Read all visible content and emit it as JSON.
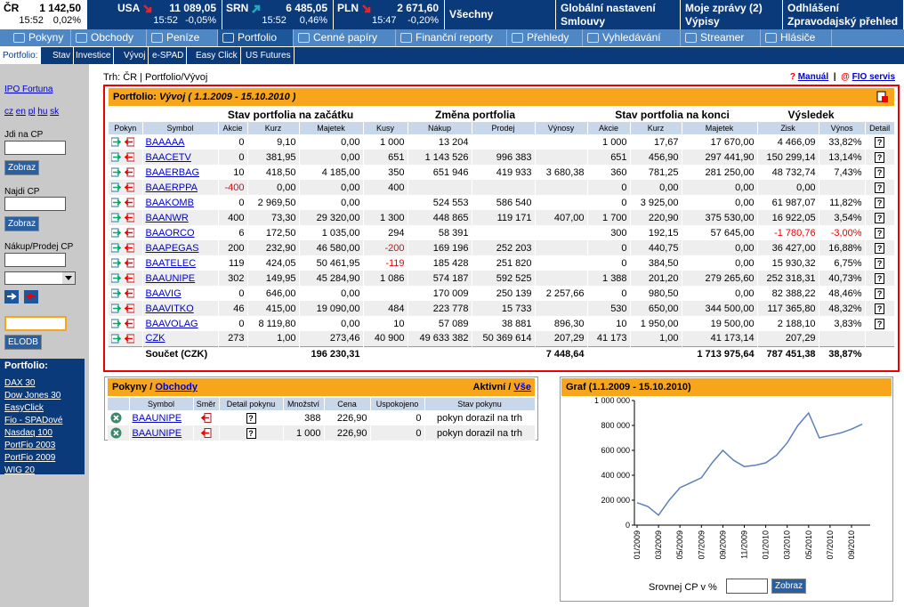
{
  "market": [
    {
      "name": "ČR",
      "value": "1 142,50",
      "time": "15:52",
      "change": "0,02%"
    },
    {
      "name": "USA",
      "value": "11 089,05",
      "time": "15:52",
      "change": "-0,05%"
    },
    {
      "name": "SRN",
      "value": "6 485,05",
      "time": "15:52",
      "change": "0,46%"
    },
    {
      "name": "PLN",
      "value": "2 671,60",
      "time": "15:47",
      "change": "-0,20%"
    }
  ],
  "top_links": [
    {
      "line1": "Všechny"
    },
    {
      "line1": "Globální nastavení",
      "line2": "Smlouvy"
    },
    {
      "line1": "Moje zprávy (2)",
      "line2": "Výpisy"
    },
    {
      "line1": "Odhlášení",
      "line2": "Zpravodajský přehled"
    }
  ],
  "nav_tabs": [
    "Pokyny",
    "Obchody",
    "Peníze",
    "Portfolio",
    "Cenné papíry",
    "Finanční reporty",
    "Přehledy",
    "Vyhledávání",
    "Streamer",
    "Hlásiče"
  ],
  "sub_nav": {
    "label": "Portfolio:",
    "items": [
      "Stav",
      "Investice",
      "Vývoj",
      "e-SPAD",
      "Easy Click",
      "US Futures"
    ]
  },
  "sidebar": {
    "ipo": "IPO Fortuna",
    "languages": [
      "cz",
      "en",
      "pl",
      "hu",
      "sk"
    ],
    "goto_label": "Jdi na CP",
    "goto_button": "Zobraz",
    "find_label": "Najdi CP",
    "find_button": "Zobraz",
    "trade_label": "Nákup/Prodej CP",
    "elodb_button": "ELODB",
    "portfolio_title": "Portfolio:",
    "portfolios": [
      "DAX 30",
      "Dow Jones 30",
      "EasyClick",
      "Fio - SPADové",
      "Nasdaq 100",
      "PortFio 2003",
      "PortFio 2009",
      "WIG 20"
    ]
  },
  "breadcrumb": "Trh: ČR | Portfolio/Vývoj",
  "help_links": {
    "manual": "Manuál",
    "separator": "|",
    "service": "FIO servis"
  },
  "portfolio": {
    "title_prefix": "Portfolio:",
    "title": "Vývoj ( 1.1.2009 - 15.10.2010 )",
    "groups": [
      "Stav portfolia na začátku",
      "Změna portfolia",
      "Stav portfolia na konci",
      "Výsledek"
    ],
    "columns": [
      "Pokyn",
      "Symbol",
      "Akcie",
      "Kurz",
      "Majetek",
      "Kusy",
      "Nákup",
      "Prodej",
      "Výnosy",
      "Akcie",
      "Kurz",
      "Majetek",
      "Zisk",
      "Výnos",
      "Detail"
    ],
    "rows": [
      {
        "symbol": "BAAAAA",
        "values": [
          "0",
          "9,10",
          "0,00",
          "1 000",
          "13 204",
          null,
          null,
          "1 000",
          "17,67",
          "17 670,00",
          "4 466,09",
          "33,82%"
        ],
        "detail": "?"
      },
      {
        "symbol": "BAACETV",
        "values": [
          "0",
          "381,95",
          "0,00",
          "651",
          "1 143 526",
          "996 383",
          null,
          "651",
          "456,90",
          "297 441,90",
          "150 299,14",
          "13,14%"
        ],
        "detail": "?"
      },
      {
        "symbol": "BAAERBAG",
        "values": [
          "10",
          "418,50",
          "4 185,00",
          "350",
          "651 946",
          "419 933",
          "3 680,38",
          "360",
          "781,25",
          "281 250,00",
          "48 732,74",
          "7,43%"
        ],
        "detail": "?"
      },
      {
        "symbol": "BAAERPPA",
        "values": [
          "-400",
          "0,00",
          "0,00",
          "400",
          null,
          null,
          null,
          "0",
          "0,00",
          "0,00",
          "0,00",
          null
        ],
        "detail": "?"
      },
      {
        "symbol": "BAAKOMB",
        "values": [
          "0",
          "2 969,50",
          "0,00",
          null,
          "524 553",
          "586 540",
          null,
          "0",
          "3 925,00",
          "0,00",
          "61 987,07",
          "11,82%"
        ],
        "detail": "?"
      },
      {
        "symbol": "BAANWR",
        "values": [
          "400",
          "73,30",
          "29 320,00",
          "1 300",
          "448 865",
          "119 171",
          "407,00",
          "1 700",
          "220,90",
          "375 530,00",
          "16 922,05",
          "3,54%"
        ],
        "detail": "?"
      },
      {
        "symbol": "BAAORCO",
        "values": [
          "6",
          "172,50",
          "1 035,00",
          "294",
          "58 391",
          null,
          null,
          "300",
          "192,15",
          "57 645,00",
          "-1 780,76",
          "-3,00%"
        ],
        "detail": "?"
      },
      {
        "symbol": "BAAPEGAS",
        "values": [
          "200",
          "232,90",
          "46 580,00",
          "-200",
          "169 196",
          "252 203",
          null,
          "0",
          "440,75",
          "0,00",
          "36 427,00",
          "16,88%"
        ],
        "detail": "?"
      },
      {
        "symbol": "BAATELEC",
        "values": [
          "119",
          "424,05",
          "50 461,95",
          "-119",
          "185 428",
          "251 820",
          null,
          "0",
          "384,50",
          "0,00",
          "15 930,32",
          "6,75%"
        ],
        "detail": "?"
      },
      {
        "symbol": "BAAUNIPE",
        "values": [
          "302",
          "149,95",
          "45 284,90",
          "1 086",
          "574 187",
          "592 525",
          null,
          "1 388",
          "201,20",
          "279 265,60",
          "252 318,31",
          "40,73%"
        ],
        "detail": "?"
      },
      {
        "symbol": "BAAVIG",
        "values": [
          "0",
          "646,00",
          "0,00",
          null,
          "170 009",
          "250 139",
          "2 257,66",
          "0",
          "980,50",
          "0,00",
          "82 388,22",
          "48,46%"
        ],
        "detail": "?"
      },
      {
        "symbol": "BAAVITKO",
        "values": [
          "46",
          "415,00",
          "19 090,00",
          "484",
          "223 778",
          "15 733",
          null,
          "530",
          "650,00",
          "344 500,00",
          "117 365,80",
          "48,32%"
        ],
        "detail": "?"
      },
      {
        "symbol": "BAAVOLAG",
        "values": [
          "0",
          "8 119,80",
          "0,00",
          "10",
          "57 089",
          "38 881",
          "896,30",
          "10",
          "1 950,00",
          "19 500,00",
          "2 188,10",
          "3,83%"
        ],
        "detail": "?"
      },
      {
        "symbol": "CZK",
        "values": [
          "273",
          "1,00",
          "273,46",
          "40 900",
          "49 633 382",
          "50 369 614",
          "207,29",
          "41 173",
          "1,00",
          "41 173,14",
          "207,29",
          null
        ],
        "detail": null
      }
    ],
    "total": {
      "label": "Součet (CZK)",
      "values": [
        null,
        null,
        "196 230,31",
        null,
        null,
        null,
        "7 448,64",
        null,
        null,
        "1 713 975,64",
        "787 451,38",
        "38,87%"
      ]
    }
  },
  "orders": {
    "title": "Pokyny",
    "separator": "/",
    "title_link": "Obchody",
    "filter_active": "Aktivní",
    "filter_separator": "/",
    "filter_all": "Vše",
    "columns": [
      "Symbol",
      "Směr",
      "Detail pokynu",
      "Množství",
      "Cena",
      "Uspokojeno",
      "Stav pokynu"
    ],
    "rows": [
      {
        "symbol": "BAAUNIPE",
        "detail": "?",
        "quantity": "388",
        "price": "226,90",
        "filled": "0",
        "status": "pokyn dorazil na trh"
      },
      {
        "symbol": "BAAUNIPE",
        "detail": "?",
        "quantity": "1 000",
        "price": "226,90",
        "filled": "0",
        "status": "pokyn dorazil na trh"
      }
    ]
  },
  "compare": {
    "label": "Srovnej CP v %",
    "button": "Zobraz"
  },
  "chart_data": {
    "type": "line",
    "title": "Graf (1.1.2009 - 15.10.2010)",
    "x": [
      "01/2009",
      "02/2009",
      "03/2009",
      "04/2009",
      "05/2009",
      "06/2009",
      "07/2009",
      "08/2009",
      "09/2009",
      "10/2009",
      "11/2009",
      "12/2009",
      "01/2010",
      "02/2010",
      "03/2010",
      "04/2010",
      "05/2010",
      "06/2010",
      "07/2010",
      "08/2010",
      "09/2010",
      "10/2010"
    ],
    "series": [
      {
        "color": "#5b7fbd",
        "values": [
          180000,
          150000,
          80000,
          200000,
          300000,
          340000,
          380000,
          500000,
          600000,
          520000,
          470000,
          480000,
          500000,
          560000,
          660000,
          800000,
          900000,
          700000,
          720000,
          740000,
          770000,
          810000
        ]
      }
    ],
    "ylim": [
      0,
      1000000
    ],
    "yticks": [
      0,
      {
        "value": 200000,
        "label": "200 000"
      },
      {
        "value": 400000,
        "label": "400 000"
      },
      {
        "value": 600000,
        "label": "600 000"
      },
      {
        "value": 800000,
        "label": "800 000"
      },
      {
        "value": 1000000,
        "label": "1 000 000"
      }
    ],
    "xticks": [
      "01/2009",
      "03/2009",
      "05/2009",
      "07/2009",
      "09/2009",
      "11/2009",
      "01/2010",
      "03/2010",
      "05/2010",
      "07/2010",
      "09/2010"
    ],
    "grid": false
  }
}
